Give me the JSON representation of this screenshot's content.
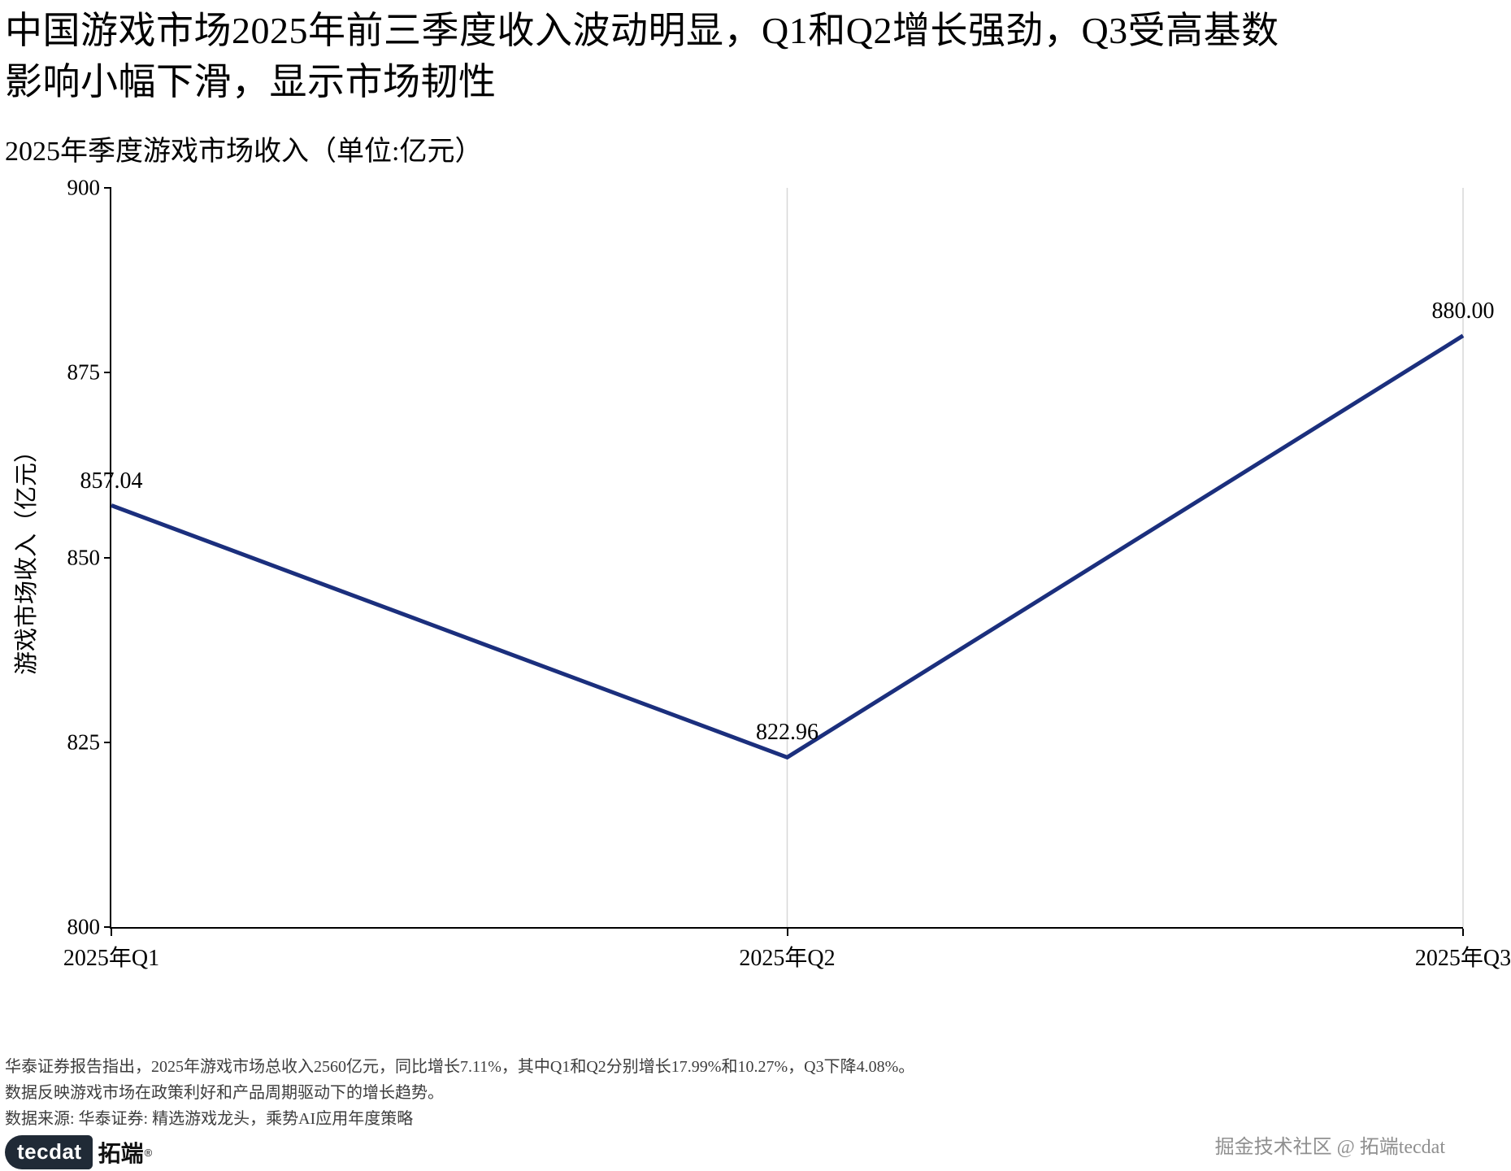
{
  "title": "中国游戏市场2025年前三季度收入波动明显，Q1和Q2增长强劲，Q3受高基数影响小幅下滑，显示市场韧性",
  "subtitle": "2025年季度游戏市场收入（单位:亿元）",
  "chart_data": {
    "type": "line",
    "categories": [
      "2025年Q1",
      "2025年Q2",
      "2025年Q3"
    ],
    "values": [
      857.04,
      822.96,
      880.0
    ],
    "point_labels": [
      "857.04",
      "822.96",
      "880.00"
    ],
    "title": "2025年季度游戏市场收入（单位:亿元）",
    "xlabel": "",
    "ylabel": "游戏市场收入（亿元）",
    "ylim": [
      800,
      900
    ],
    "yticks": [
      900,
      875,
      850,
      825,
      800
    ],
    "line_color": "#1b2f7d",
    "gridline_color": "#d7d7d7",
    "grid": "vertical gridlines at category positions",
    "legend": "none"
  },
  "footer": {
    "line1": "华泰证券报告指出，2025年游戏市场总收入2560亿元，同比增长7.11%，其中Q1和Q2分别增长17.99%和10.27%，Q3下降4.08%。",
    "line2": "数据反映游戏市场在政策利好和产品周期驱动下的增长趋势。",
    "line3": "数据来源: 华泰证券: 精选游戏龙头，乘势AI应用年度策略"
  },
  "branding": {
    "logo_text": "tecdat",
    "logo_suffix": "拓端",
    "registered": "®",
    "watermark": "掘金技术社区 @ 拓端tecdat"
  }
}
